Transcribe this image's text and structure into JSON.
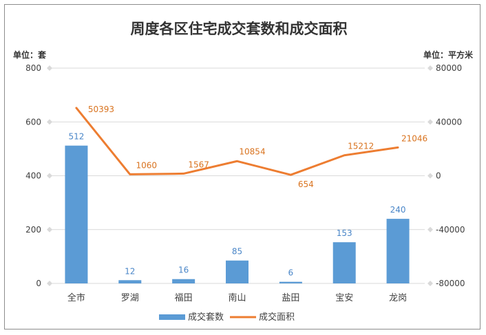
{
  "chart_data": {
    "type": "bar+line",
    "title": "周度各区住宅成交套数和成交面积",
    "left_unit": "单位：套",
    "right_unit": "单位：平方米",
    "categories": [
      "全市",
      "罗湖",
      "福田",
      "南山",
      "盐田",
      "宝安",
      "龙岗"
    ],
    "series": [
      {
        "name": "成交套数",
        "type": "bar",
        "axis": "left",
        "values": [
          512,
          12,
          16,
          85,
          6,
          153,
          240
        ],
        "color": "#5b9bd5"
      },
      {
        "name": "成交面积",
        "type": "line",
        "axis": "right",
        "values": [
          50393,
          1060,
          1567,
          10854,
          654,
          15212,
          21046
        ],
        "color": "#ed7d31"
      }
    ],
    "left_axis": {
      "min": 0,
      "max": 800,
      "ticks": [
        "0",
        "200",
        "400",
        "600",
        "800"
      ]
    },
    "right_axis": {
      "min": -80000,
      "max": 80000,
      "ticks": [
        "-80000",
        "-40000",
        "0",
        "40000",
        "80000"
      ]
    },
    "grid": true,
    "legend_position": "bottom"
  }
}
